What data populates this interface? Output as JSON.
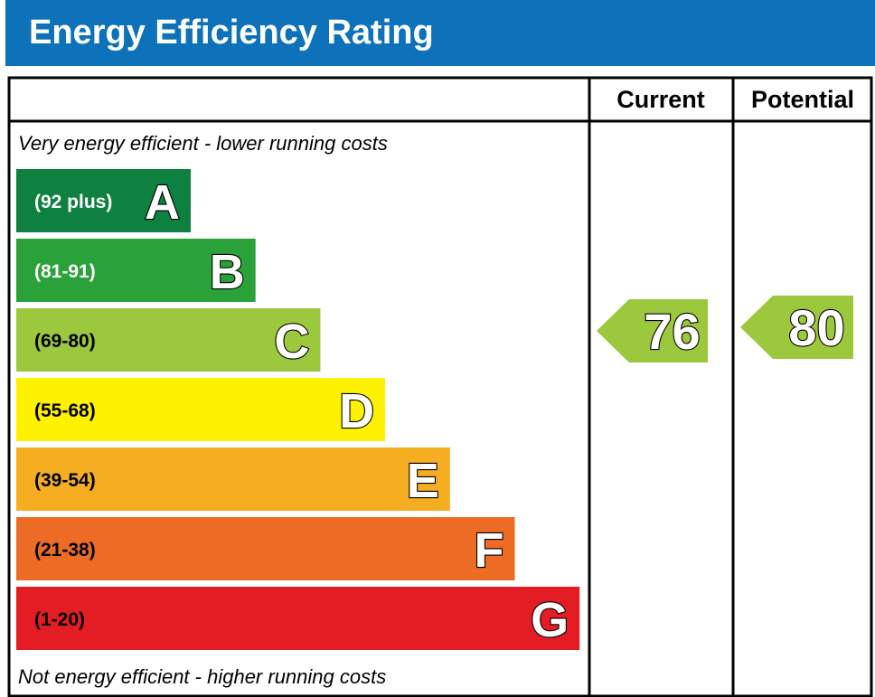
{
  "title": "Energy Efficiency Rating",
  "columns": {
    "current": "Current",
    "potential": "Potential"
  },
  "top_note": "Very energy efficient - lower running costs",
  "bottom_note": "Not energy efficient - higher running costs",
  "chart_data": {
    "type": "bar",
    "bands": [
      {
        "letter": "A",
        "range": "(92 plus)",
        "color": "#0e8040"
      },
      {
        "letter": "B",
        "range": "(81-91)",
        "color": "#2ba239"
      },
      {
        "letter": "C",
        "range": "(69-80)",
        "color": "#9bc83d"
      },
      {
        "letter": "D",
        "range": "(55-68)",
        "color": "#fff200"
      },
      {
        "letter": "E",
        "range": "(39-54)",
        "color": "#f5ae21"
      },
      {
        "letter": "F",
        "range": "(21-38)",
        "color": "#ec6b25"
      },
      {
        "letter": "G",
        "range": "(1-20)",
        "color": "#e31d23"
      }
    ],
    "current": {
      "value": 76,
      "band": "C",
      "color": "#9bc83d"
    },
    "potential": {
      "value": 80,
      "band": "C",
      "color": "#9bc83d"
    }
  }
}
